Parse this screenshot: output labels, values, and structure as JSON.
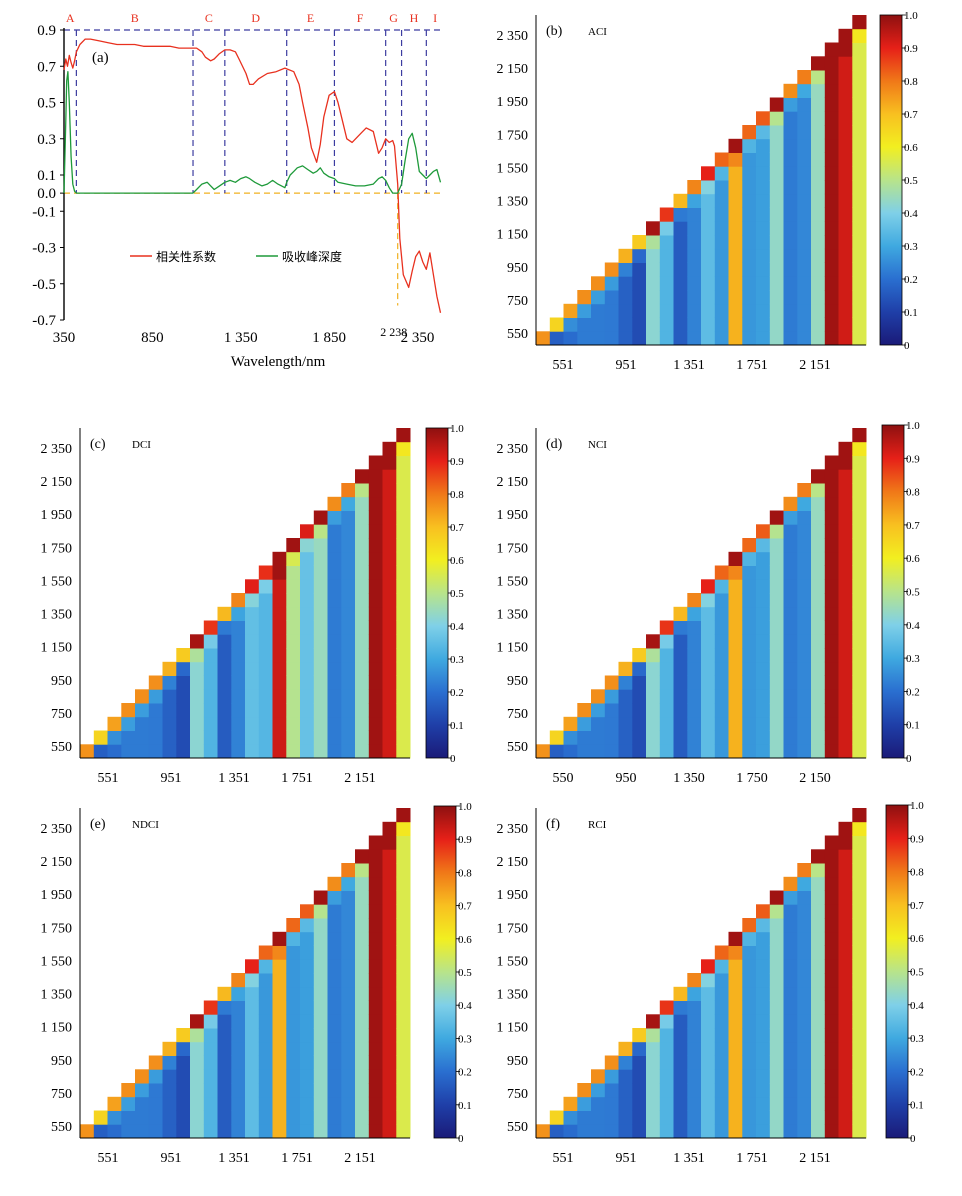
{
  "chart_data": [
    {
      "id": "a",
      "type": "line",
      "panel_label": "(a)",
      "xlabel": "Wavelength/nm",
      "ylabel": "",
      "xlim": [
        350,
        2500
      ],
      "ylim": [
        -0.7,
        0.9
      ],
      "x_ticks": [
        {
          "value": 350,
          "label": "350"
        },
        {
          "value": 850,
          "label": "850"
        },
        {
          "value": 1350,
          "label": "1 350"
        },
        {
          "value": 1850,
          "label": "1 850"
        },
        {
          "value": 2350,
          "label": "2 350"
        }
      ],
      "y_ticks": [
        {
          "value": 0.9,
          "label": "0.9"
        },
        {
          "value": 0.7,
          "label": "0.7"
        },
        {
          "value": 0.5,
          "label": "0.5"
        },
        {
          "value": 0.3,
          "label": "0.3"
        },
        {
          "value": 0.1,
          "label": "0.1"
        },
        {
          "value": 0.0,
          "label": "0.0"
        },
        {
          "value": -0.1,
          "label": "-0.1"
        },
        {
          "value": -0.3,
          "label": "-0.3"
        },
        {
          "value": -0.5,
          "label": "-0.5"
        },
        {
          "value": -0.7,
          "label": "-0.7"
        }
      ],
      "regions": [
        {
          "label": "A",
          "start": 350,
          "end": 420
        },
        {
          "label": "B",
          "start": 420,
          "end": 1080
        },
        {
          "label": "C",
          "start": 1080,
          "end": 1260
        },
        {
          "label": "D",
          "start": 1260,
          "end": 1610
        },
        {
          "label": "E",
          "start": 1610,
          "end": 1880
        },
        {
          "label": "F",
          "start": 1880,
          "end": 2170
        },
        {
          "label": "G",
          "start": 2170,
          "end": 2260
        },
        {
          "label": "H",
          "start": 2260,
          "end": 2400
        },
        {
          "label": "I",
          "start": 2400,
          "end": 2500
        }
      ],
      "annotation": {
        "label": "2 238",
        "x": 2238
      },
      "reference_lines": {
        "horizontal": [
          0.9,
          0.0
        ],
        "vertical": [
          2238
        ]
      },
      "colors": {
        "correlation": "#e8311f",
        "absorption": "#1e9a3a",
        "region_lines": "#3c3ca0",
        "reference": "#f0b020",
        "region_labels": "#e8311f"
      },
      "series": [
        {
          "name": "相关性系数",
          "x": [
            350,
            360,
            370,
            380,
            390,
            400,
            410,
            420,
            440,
            470,
            500,
            550,
            600,
            650,
            700,
            750,
            800,
            850,
            900,
            950,
            1000,
            1050,
            1080,
            1100,
            1130,
            1150,
            1180,
            1200,
            1230,
            1260,
            1290,
            1320,
            1340,
            1380,
            1400,
            1420,
            1450,
            1500,
            1550,
            1600,
            1650,
            1680,
            1700,
            1730,
            1750,
            1780,
            1800,
            1820,
            1850,
            1880,
            1900,
            1930,
            1950,
            1980,
            2000,
            2030,
            2060,
            2100,
            2130,
            2150,
            2170,
            2190,
            2210,
            2220,
            2238,
            2250,
            2270,
            2300,
            2320,
            2340,
            2360,
            2380,
            2400,
            2420,
            2440,
            2460,
            2480
          ],
          "values": [
            0.68,
            0.74,
            0.7,
            0.76,
            0.72,
            0.69,
            0.73,
            0.78,
            0.82,
            0.85,
            0.85,
            0.84,
            0.83,
            0.82,
            0.82,
            0.82,
            0.81,
            0.81,
            0.81,
            0.81,
            0.8,
            0.8,
            0.8,
            0.8,
            0.78,
            0.75,
            0.73,
            0.74,
            0.77,
            0.79,
            0.79,
            0.78,
            0.74,
            0.66,
            0.6,
            0.6,
            0.63,
            0.66,
            0.67,
            0.69,
            0.67,
            0.6,
            0.5,
            0.36,
            0.25,
            0.17,
            0.27,
            0.42,
            0.54,
            0.56,
            0.5,
            0.38,
            0.3,
            0.28,
            0.3,
            0.33,
            0.36,
            0.34,
            0.22,
            0.25,
            0.3,
            0.28,
            0.29,
            0.26,
            0.05,
            -0.25,
            -0.45,
            -0.52,
            -0.43,
            -0.35,
            -0.32,
            -0.38,
            -0.42,
            -0.33,
            -0.45,
            -0.57,
            -0.66
          ]
        },
        {
          "name": "吸收峰深度",
          "x": [
            350,
            360,
            365,
            372,
            380,
            390,
            400,
            410,
            420,
            450,
            500,
            600,
            700,
            800,
            900,
            1000,
            1080,
            1100,
            1130,
            1160,
            1180,
            1200,
            1230,
            1260,
            1290,
            1320,
            1350,
            1380,
            1400,
            1430,
            1470,
            1500,
            1530,
            1560,
            1600,
            1610,
            1630,
            1650,
            1670,
            1700,
            1730,
            1760,
            1780,
            1800,
            1820,
            1850,
            1880,
            1900,
            1950,
            2000,
            2050,
            2100,
            2130,
            2150,
            2170,
            2190,
            2210,
            2238,
            2260,
            2280,
            2300,
            2320,
            2340,
            2360,
            2380,
            2400,
            2420,
            2440,
            2460,
            2480
          ],
          "values": [
            0.0,
            0.4,
            0.62,
            0.67,
            0.5,
            0.2,
            0.05,
            0.01,
            0.0,
            0.0,
            0.0,
            0.0,
            0.0,
            0.0,
            0.0,
            0.0,
            0.0,
            0.02,
            0.05,
            0.06,
            0.04,
            0.02,
            0.04,
            0.06,
            0.07,
            0.06,
            0.08,
            0.09,
            0.08,
            0.06,
            0.04,
            0.05,
            0.07,
            0.05,
            0.03,
            0.06,
            0.1,
            0.12,
            0.14,
            0.15,
            0.13,
            0.11,
            0.12,
            0.14,
            0.11,
            0.09,
            0.08,
            0.06,
            0.05,
            0.04,
            0.04,
            0.05,
            0.08,
            0.09,
            0.07,
            0.03,
            0.0,
            0.0,
            0.05,
            0.18,
            0.3,
            0.33,
            0.25,
            0.12,
            0.1,
            0.08,
            0.1,
            0.12,
            0.13,
            0.06
          ]
        }
      ]
    },
    {
      "id": "b",
      "type": "heatmap",
      "panel_label": "(b)",
      "title": "ACI",
      "x_ticks": [
        "551",
        "951",
        "1 351",
        "1 751",
        "2 151"
      ],
      "y_ticks": [
        "2 350",
        "2 150",
        "1 950",
        "1 750",
        "1 550",
        "1 350",
        "1 150",
        "950",
        "750",
        "550"
      ],
      "colorbar": {
        "range": [
          0,
          1
        ],
        "tick_labels": [
          "1.0",
          "0.9",
          "0.8",
          "0.7",
          "0.6",
          "0.5",
          "0.4",
          "0.3",
          "0.2",
          "0.1",
          "0"
        ]
      }
    },
    {
      "id": "c",
      "type": "heatmap",
      "panel_label": "(c)",
      "title": "DCI",
      "x_ticks": [
        "551",
        "951",
        "1 351",
        "1 751",
        "2 151"
      ],
      "y_ticks": [
        "2 350",
        "2 150",
        "1 950",
        "1 750",
        "1 550",
        "1 350",
        "1 150",
        "950",
        "750",
        "550"
      ],
      "colorbar": {
        "range": [
          0,
          1
        ],
        "tick_labels": [
          "1.0",
          "0.9",
          "0.8",
          "0.7",
          "0.6",
          "0.5",
          "0.4",
          "0.3",
          "0.2",
          "0.1",
          "0"
        ]
      }
    },
    {
      "id": "d",
      "type": "heatmap",
      "panel_label": "(d)",
      "title": "NCI",
      "x_ticks": [
        "550",
        "950",
        "1 350",
        "1 750",
        "2 150"
      ],
      "y_ticks": [
        "2 350",
        "2 150",
        "1 950",
        "1 750",
        "1 550",
        "1 350",
        "1 150",
        "950",
        "750",
        "550"
      ],
      "colorbar": {
        "range": [
          0,
          1
        ],
        "tick_labels": [
          "1.0",
          "0.9",
          "0.8",
          "0.7",
          "0.6",
          "0.5",
          "0.4",
          "0.3",
          "0.2",
          "0.1",
          "0"
        ]
      }
    },
    {
      "id": "e",
      "type": "heatmap",
      "panel_label": "(e)",
      "title": "NDCI",
      "x_ticks": [
        "551",
        "951",
        "1 351",
        "1 751",
        "2 151"
      ],
      "y_ticks": [
        "2 350",
        "2 150",
        "1 950",
        "1 750",
        "1 550",
        "1 350",
        "1 150",
        "950",
        "750",
        "550"
      ],
      "colorbar": {
        "range": [
          0,
          1
        ],
        "tick_labels": [
          "1.0",
          "0.9",
          "0.8",
          "0.7",
          "0.6",
          "0.5",
          "0.4",
          "0.3",
          "0.2",
          "0.1",
          "0"
        ]
      }
    },
    {
      "id": "f",
      "type": "heatmap",
      "panel_label": "(f)",
      "title": "RCI",
      "x_ticks": [
        "551",
        "951",
        "1 351",
        "1 751",
        "2 151"
      ],
      "y_ticks": [
        "2 350",
        "2 150",
        "1 950",
        "1 750",
        "1 550",
        "1 350",
        "1 150",
        "950",
        "750",
        "550"
      ],
      "colorbar": {
        "range": [
          0,
          1
        ],
        "tick_labels": [
          "1.0",
          "0.9",
          "0.8",
          "0.7",
          "0.6",
          "0.5",
          "0.4",
          "0.3",
          "0.2",
          "0.1",
          "0"
        ]
      }
    }
  ]
}
